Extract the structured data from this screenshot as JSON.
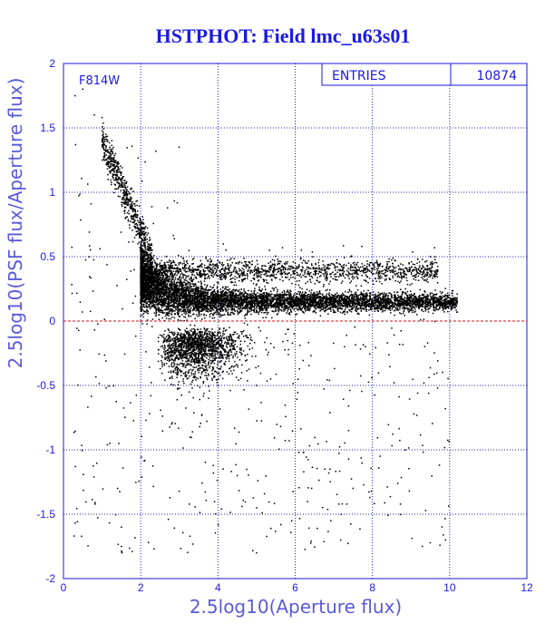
{
  "chart_data": {
    "type": "scatter",
    "title": "HSTPHOT: Field lmc_u63s01",
    "xlabel": "2.5log10(Aperture flux)",
    "ylabel": "2.5log10(PSF flux/Aperture flux)",
    "xlim": [
      0,
      12
    ],
    "ylim": [
      -2,
      2
    ],
    "x_ticks": [
      "0",
      "2",
      "4",
      "6",
      "8",
      "10",
      "12"
    ],
    "y_ticks": [
      "2",
      "1.5",
      "1",
      "0.5",
      "0",
      "-0.5",
      "-1",
      "-1.5",
      "-2"
    ],
    "grid": true,
    "reference_line_y": 0,
    "filter_label": "F814W",
    "stats_box": {
      "label": "ENTRIES",
      "value": "10874"
    },
    "point_count_shown": 10874,
    "density_description_points": [
      [
        0.3,
        1.75
      ],
      [
        0.5,
        1.8
      ],
      [
        0.8,
        1.6
      ],
      [
        1.0,
        1.58
      ],
      [
        1.1,
        1.45
      ],
      [
        1.2,
        1.3
      ],
      [
        1.5,
        1.1
      ],
      [
        1.8,
        0.85
      ],
      [
        2.0,
        0.55
      ],
      [
        2.5,
        0.3
      ],
      [
        3.0,
        0.22
      ],
      [
        4.0,
        0.18
      ],
      [
        5.0,
        0.16
      ],
      [
        6.0,
        0.15
      ],
      [
        7.0,
        0.16
      ],
      [
        8.0,
        0.17
      ],
      [
        9.0,
        0.18
      ],
      [
        10.0,
        0.18
      ],
      [
        2.5,
        0.45
      ],
      [
        4.0,
        0.42
      ],
      [
        6.0,
        0.45
      ],
      [
        7.5,
        0.45
      ],
      [
        9.5,
        0.5
      ],
      [
        3.0,
        -0.2
      ],
      [
        3.5,
        -0.4
      ],
      [
        4.0,
        -0.5
      ],
      [
        5.0,
        -0.5
      ],
      [
        2.8,
        -0.8
      ],
      [
        1.2,
        -0.95
      ],
      [
        1.4,
        -1.3
      ],
      [
        1.5,
        -1.6
      ],
      [
        1.5,
        -1.75
      ],
      [
        2.2,
        -1.72
      ],
      [
        4.5,
        -1.2
      ],
      [
        5.0,
        -1.45
      ],
      [
        5.0,
        -1.8
      ],
      [
        8.2,
        -1.05
      ]
    ],
    "colors": {
      "points": "#000000",
      "grid": "#2020c0",
      "axes_text": "#1a1ae6",
      "zero_line": "#d01010"
    }
  }
}
